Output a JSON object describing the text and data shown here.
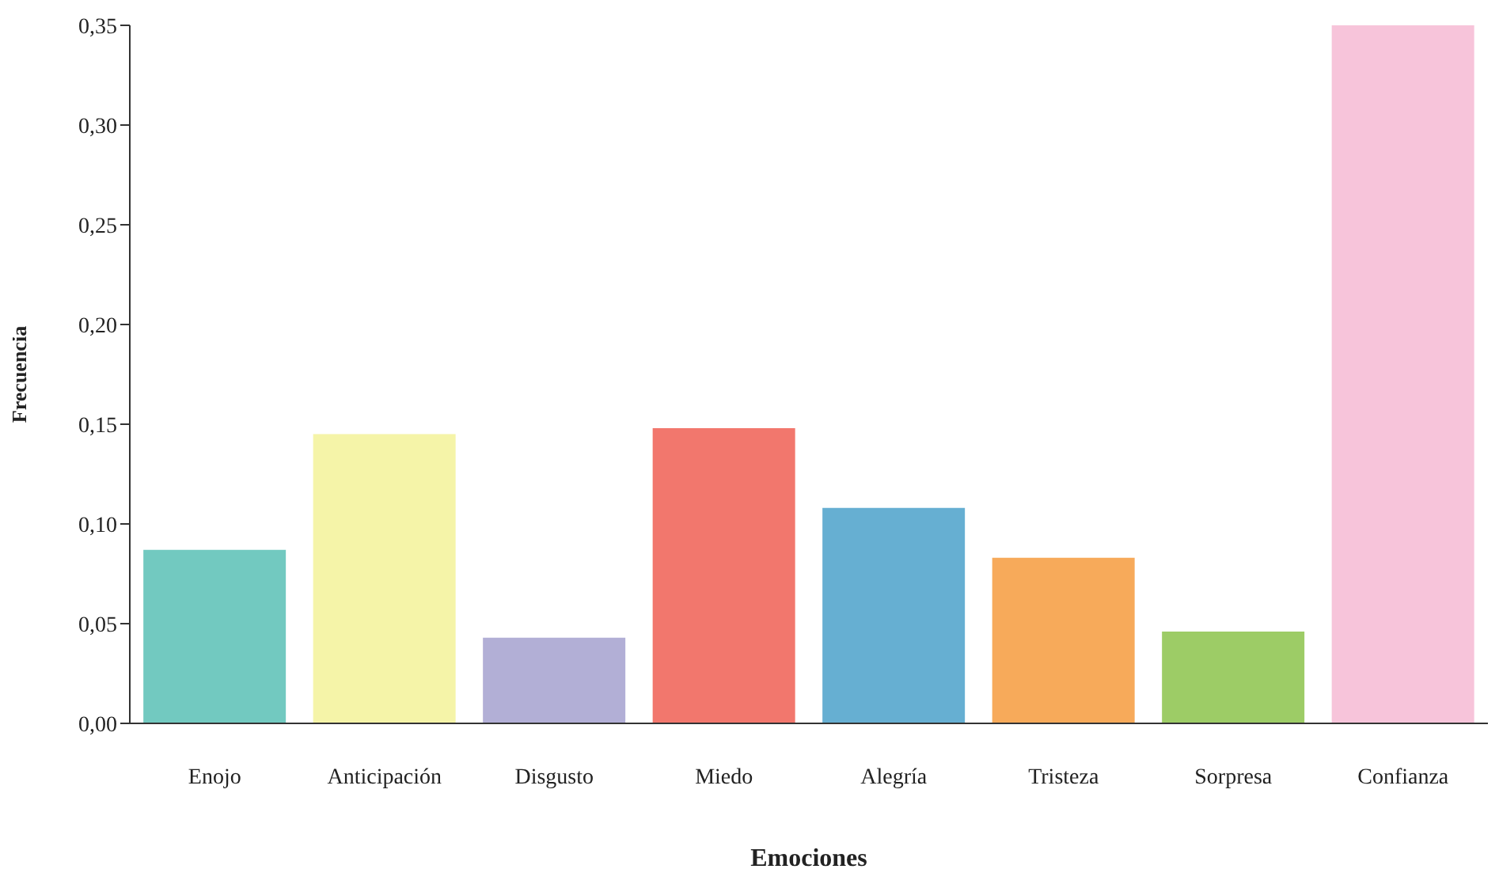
{
  "chart_data": {
    "type": "bar",
    "xlabel": "Emociones",
    "ylabel": "Frecuencia",
    "categories": [
      "Enojo",
      "Anticipación",
      "Disgusto",
      "Miedo",
      "Alegría",
      "Tristeza",
      "Sorpresa",
      "Confianza"
    ],
    "values": [
      0.087,
      0.145,
      0.043,
      0.148,
      0.108,
      0.083,
      0.046,
      0.35
    ],
    "colors": [
      "#72c9c0",
      "#f5f4a8",
      "#b2afd6",
      "#f2776d",
      "#66afd2",
      "#f7aa5a",
      "#9dcc66",
      "#f7c4da"
    ],
    "ylim": [
      0,
      0.35
    ],
    "yticks": [
      {
        "value": 0,
        "label": "0,00"
      },
      {
        "value": 0.05,
        "label": "0,05"
      },
      {
        "value": 0.1,
        "label": "0,10"
      },
      {
        "value": 0.15,
        "label": "0,15"
      },
      {
        "value": 0.2,
        "label": "0,20"
      },
      {
        "value": 0.25,
        "label": "0,25"
      },
      {
        "value": 0.3,
        "label": "0,30"
      },
      {
        "value": 0.35,
        "label": "0,35"
      }
    ],
    "grid": false,
    "legend": false
  }
}
